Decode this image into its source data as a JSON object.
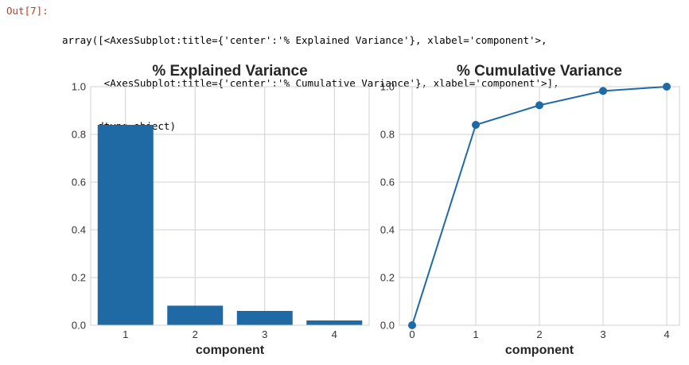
{
  "cell": {
    "prompt": "Out[7]:",
    "lines": [
      "array([<AxesSubplot:title={'center':'% Explained Variance'}, xlabel='component'>,",
      "       <AxesSubplot:title={'center':'% Cumulative Variance'}, xlabel='component'>],",
      "      dtype=object)"
    ]
  },
  "colors": {
    "series": "#1f6aa5",
    "grid": "#d0d0d0",
    "prompt": "#c23b22"
  },
  "chart_data": [
    {
      "type": "bar",
      "title": "% Explained Variance",
      "xlabel": "component",
      "ylabel": "",
      "categories": [
        "1",
        "2",
        "3",
        "4"
      ],
      "values": [
        0.84,
        0.082,
        0.06,
        0.02
      ],
      "ylim": [
        0,
        1.0
      ],
      "yticks": [
        "0.0",
        "0.2",
        "0.4",
        "0.6",
        "0.8",
        "1.0"
      ],
      "grid": true
    },
    {
      "type": "line",
      "title": "% Cumulative Variance",
      "xlabel": "component",
      "ylabel": "",
      "x": [
        0,
        1,
        2,
        3,
        4
      ],
      "values": [
        0.0,
        0.84,
        0.922,
        0.982,
        1.0
      ],
      "xticks": [
        "0",
        "1",
        "2",
        "3",
        "4"
      ],
      "ylim": [
        0,
        1.0
      ],
      "yticks": [
        "0.0",
        "0.2",
        "0.4",
        "0.6",
        "0.8",
        "1.0"
      ],
      "grid": true,
      "markers": true
    }
  ]
}
